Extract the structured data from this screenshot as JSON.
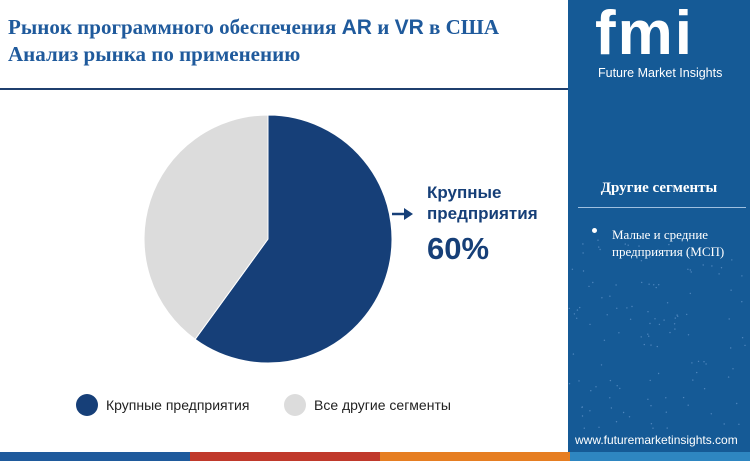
{
  "title": {
    "line1_part1": "Рынок программного обеспечения ",
    "line1_ar": "AR",
    "line1_part2": " и ",
    "line1_vr": "VR",
    "line1_part3": " в США",
    "line2": "Анализ рынка по применению"
  },
  "logo": {
    "letters": "fmi",
    "text": "Future Market Insights"
  },
  "side_panel": {
    "heading": "Другие сегменты",
    "items": [
      "Малые и средние предприятия (МСП)"
    ]
  },
  "website": "www.futuremarketinsights.com",
  "callout": {
    "label": "Крупные предприятия",
    "value": "60%"
  },
  "chart_data": {
    "type": "pie",
    "slices": [
      {
        "name": "Крупные предприятия",
        "value": 60,
        "color": "#163f78"
      },
      {
        "name": "Все другие сегменты",
        "value": 40,
        "color": "#dcdcdc"
      }
    ],
    "legend": [
      "Крупные предприятия",
      "Все другие сегменты"
    ],
    "legend_position": "bottom"
  },
  "colors": {
    "brand_blue": "#155a96",
    "title_blue": "#1f5a9c",
    "dark_navy": "#163f78",
    "light_gray": "#dcdcdc",
    "bottom_bar": [
      "#1f5a9c",
      "#c0392b",
      "#e67e22",
      "#2e86c1"
    ]
  }
}
